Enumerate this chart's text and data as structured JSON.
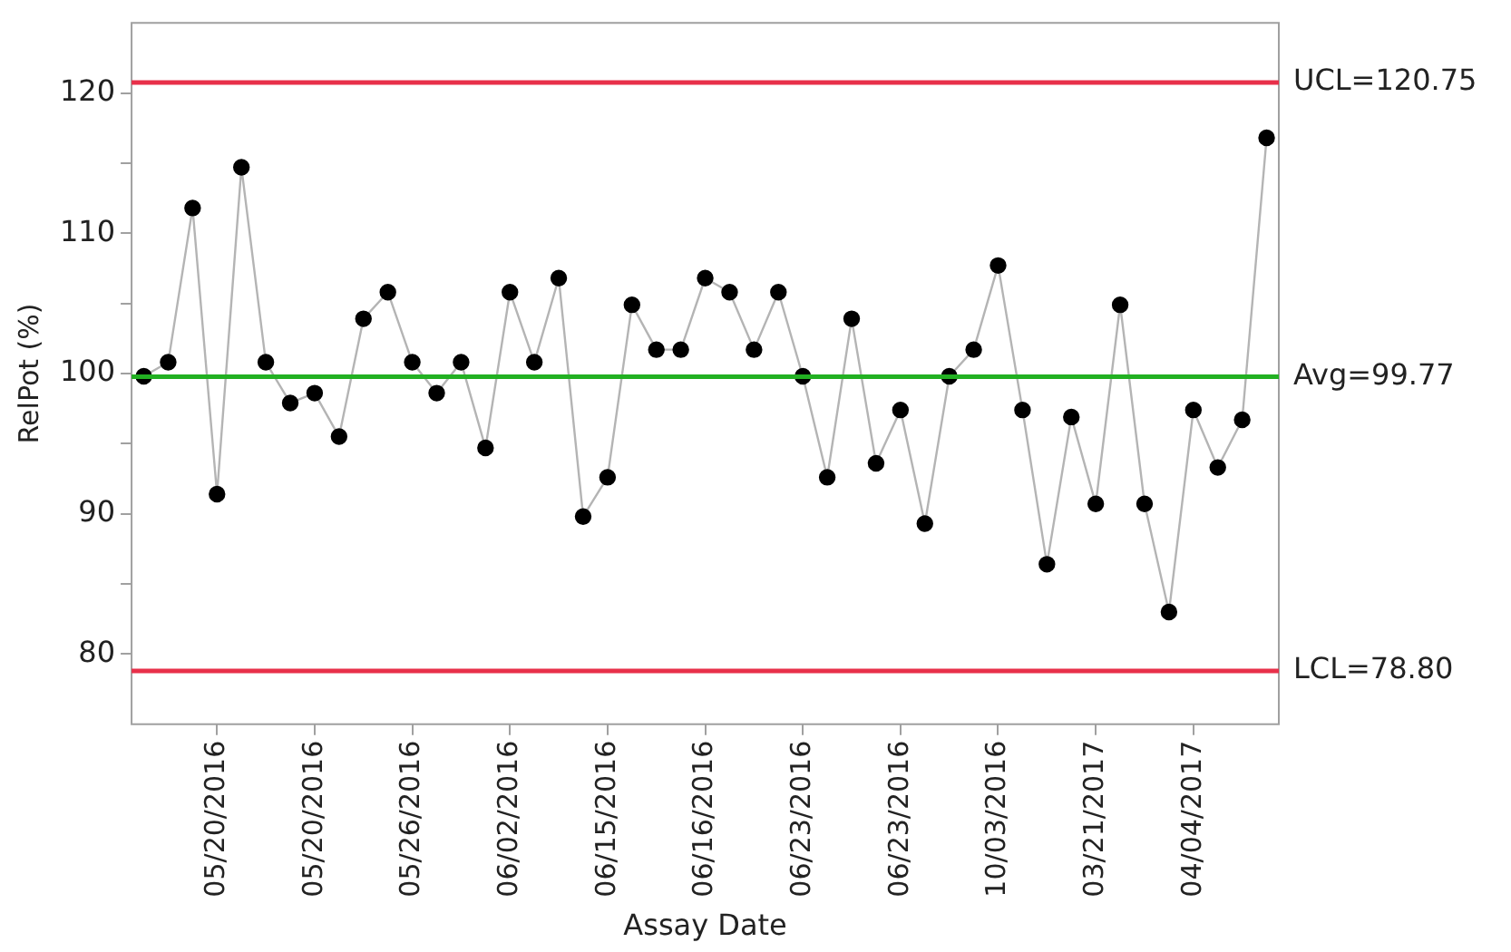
{
  "chart_data": {
    "type": "line",
    "xlabel": "Assay Date",
    "ylabel": "RelPot (%)",
    "categories": [
      null,
      null,
      null,
      "05/20/2016",
      null,
      null,
      null,
      "05/20/2016",
      null,
      null,
      null,
      "05/26/2016",
      null,
      null,
      null,
      "06/02/2016",
      null,
      null,
      null,
      "06/15/2016",
      null,
      null,
      null,
      "06/16/2016",
      null,
      null,
      null,
      "06/23/2016",
      null,
      null,
      null,
      "06/23/2016",
      null,
      null,
      null,
      "10/03/2016",
      null,
      null,
      null,
      "03/21/2017",
      null,
      null,
      null,
      "04/04/2017",
      null,
      null,
      null
    ],
    "series": [
      {
        "color": "#000000",
        "values": [
          99.8,
          100.8,
          111.8,
          91.4,
          114.7,
          100.8,
          97.9,
          98.6,
          95.5,
          103.9,
          105.8,
          100.8,
          98.6,
          100.8,
          94.7,
          105.8,
          100.8,
          106.8,
          89.8,
          92.6,
          104.9,
          101.7,
          101.7,
          106.8,
          105.8,
          101.7,
          105.8,
          99.8,
          92.6,
          103.9,
          93.6,
          97.4,
          89.3,
          99.8,
          101.7,
          107.7,
          97.4,
          86.4,
          96.9,
          90.7,
          104.9,
          90.7,
          83.0,
          97.4,
          93.3,
          96.7,
          116.8
        ]
      }
    ],
    "marker": "circle",
    "line_style": "solid",
    "grid": false,
    "legend": false,
    "ylim": [
      75,
      125
    ],
    "yticks": [
      80,
      {
        "value": 85,
        "label": null
      },
      90,
      {
        "value": 95,
        "label": null
      },
      100,
      {
        "value": 105,
        "label": null
      },
      110,
      {
        "value": 115,
        "label": null
      },
      120
    ],
    "ref_lines": [
      {
        "axis": "y",
        "value": 120.75,
        "label": "UCL=120.75",
        "color": "#e8304a"
      },
      {
        "axis": "y",
        "value": 99.77,
        "label": "Avg=99.77",
        "color": "#22b022"
      },
      {
        "axis": "y",
        "value": 78.8,
        "label": "LCL=78.80",
        "color": "#e8304a"
      }
    ]
  }
}
